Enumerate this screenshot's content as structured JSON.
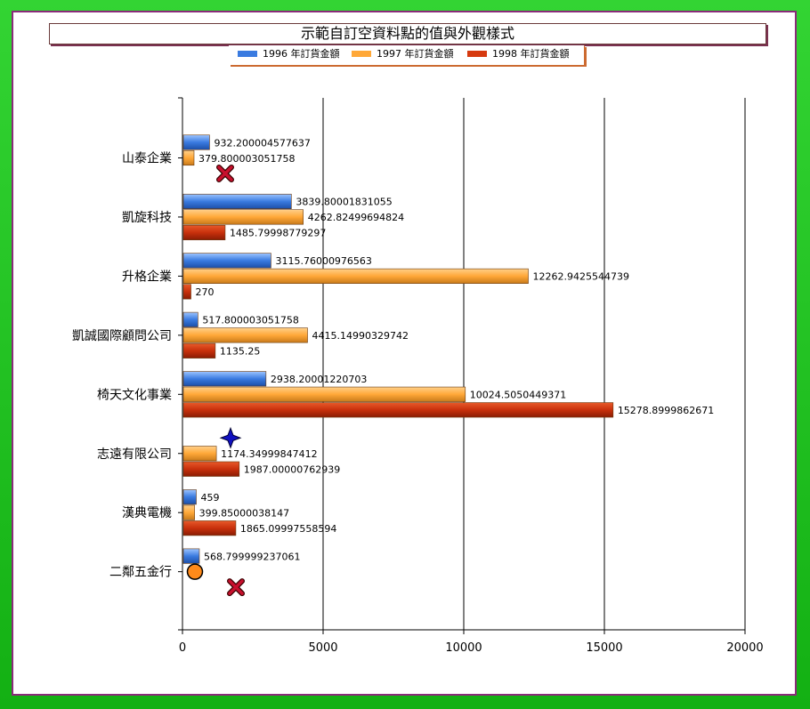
{
  "chart_data": {
    "type": "bar",
    "orientation": "horizontal",
    "title": "示範自訂空資料點的值與外觀樣式",
    "categories": [
      "山泰企業",
      "凱旋科技",
      "升格企業",
      "凱誠國際顧問公司",
      "椅天文化事業",
      "志遠有限公司",
      "漢典電機",
      "二鄰五金行"
    ],
    "series": [
      {
        "name": "1996 年訂貨金額",
        "color": "#3a7be0",
        "values": [
          932.200004577637,
          3839.80001831055,
          3115.76000976563,
          517.800003051758,
          2938.20001220703,
          null,
          459,
          568.799999237061
        ],
        "labels": [
          "932.200004577637",
          "3839.80001831055",
          "3115.76000976563",
          "517.800003051758",
          "2938.20001220703",
          "",
          "459",
          "568.799999237061"
        ]
      },
      {
        "name": "1997 年訂貨金額",
        "color": "#ffa838",
        "values": [
          379.800003051758,
          4262.82499694824,
          12262.9425544739,
          4415.14990329742,
          10024.5050449371,
          1174.34999847412,
          399.85000038147,
          null
        ],
        "labels": [
          "379.800003051758",
          "4262.82499694824",
          "12262.9425544739",
          "4415.14990329742",
          "10024.5050449371",
          "1174.34999847412",
          "399.85000038147",
          ""
        ]
      },
      {
        "name": "1998 年訂貨金額",
        "color": "#d63a10",
        "values": [
          null,
          1485.79998779297,
          270,
          1135.25,
          15278.8999862671,
          1987.00000762939,
          1865.09997558594,
          null
        ],
        "labels": [
          "",
          "1485.79998779297",
          "270",
          "1135.25",
          "15278.8999862671",
          "1987.00000762939",
          "1865.09997558594",
          ""
        ]
      }
    ],
    "empty_point_markers": [
      {
        "category": "山泰企業",
        "series": "1998 年訂貨金額",
        "marker": "cross-x",
        "color": "#c8102e"
      },
      {
        "category": "志遠有限公司",
        "series": "1996 年訂貨金額",
        "marker": "four-point-star",
        "color": "#1010c0"
      },
      {
        "category": "二鄰五金行",
        "series": "1997 年訂貨金額",
        "marker": "circle",
        "color": "#ff8a1a"
      },
      {
        "category": "二鄰五金行",
        "series": "1998 年訂貨金額",
        "marker": "cross-x",
        "color": "#c8102e"
      }
    ],
    "xlim": [
      0,
      20000
    ],
    "xticks": [
      0,
      5000,
      10000,
      15000,
      20000
    ],
    "xgrid": true,
    "legend": "top-center"
  },
  "colors": {
    "frame": "#1fbf1f",
    "inner_border": "#8a2a7a",
    "grid": "#000000"
  }
}
